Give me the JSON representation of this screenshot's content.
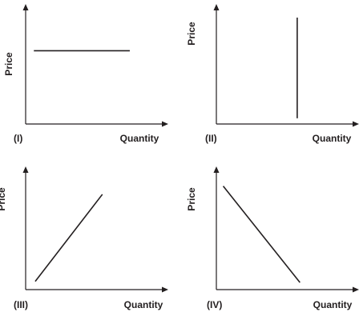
{
  "chart_data": [
    {
      "type": "line",
      "panel_label": "(I)",
      "xlabel": "Quantity",
      "ylabel": "Price",
      "curve": "horizontal",
      "x": [
        0.06,
        0.76
      ],
      "y": [
        0.64,
        0.64
      ]
    },
    {
      "type": "line",
      "panel_label": "(II)",
      "xlabel": "Quantity",
      "ylabel": "Price",
      "curve": "vertical",
      "x": [
        0.59,
        0.59
      ],
      "y": [
        0.05,
        0.93
      ]
    },
    {
      "type": "line",
      "panel_label": "(III)",
      "xlabel": "Quantity",
      "ylabel": "Price",
      "curve": "upward-sloping",
      "x": [
        0.07,
        0.56
      ],
      "y": [
        0.07,
        0.81
      ]
    },
    {
      "type": "line",
      "panel_label": "(IV)",
      "xlabel": "Quantity",
      "ylabel": "Price",
      "curve": "downward-sloping",
      "x": [
        0.05,
        0.61
      ],
      "y": [
        0.88,
        0.06
      ]
    }
  ],
  "colors": {
    "ink": "#231f20",
    "background": "#ffffff"
  }
}
